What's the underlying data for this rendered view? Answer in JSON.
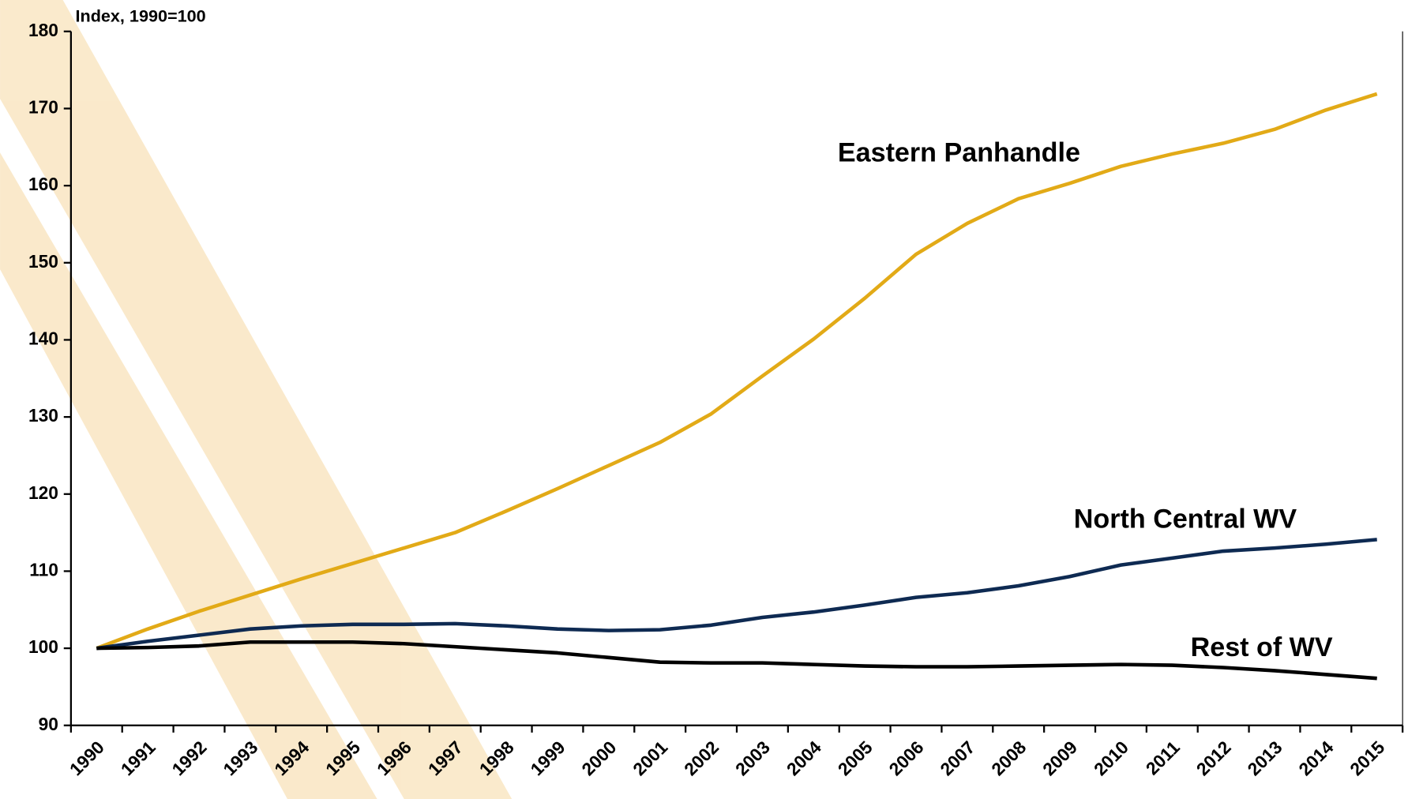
{
  "chart_data": {
    "type": "line",
    "y_label": "Index, 1990=100",
    "categories": [
      "1990",
      "1991",
      "1992",
      "1993",
      "1994",
      "1995",
      "1996",
      "1997",
      "1998",
      "1999",
      "2000",
      "2001",
      "2002",
      "2003",
      "2004",
      "2005",
      "2006",
      "2007",
      "2008",
      "2009",
      "2010",
      "2011",
      "2012",
      "2013",
      "2014",
      "2015"
    ],
    "series": [
      {
        "name": "Eastern Panhandle",
        "color": "#e2aa17",
        "values": [
          100,
          102.5,
          104.8,
          106.9,
          109,
          111,
          113,
          115,
          117.8,
          120.7,
          123.7,
          126.7,
          130.4,
          135.3,
          140.1,
          145.4,
          151.1,
          155.1,
          158.3,
          160.3,
          162.5,
          164.1,
          165.5,
          167.3,
          169.8,
          171.9
        ]
      },
      {
        "name": "North Central WV",
        "color": "#0e2a52",
        "values": [
          100,
          100.9,
          101.7,
          102.5,
          102.9,
          103.1,
          103.1,
          103.2,
          102.9,
          102.5,
          102.3,
          102.4,
          103.0,
          104.0,
          104.7,
          105.6,
          106.6,
          107.2,
          108.1,
          109.3,
          110.8,
          111.7,
          112.6,
          113.0,
          113.5,
          114.1
        ]
      },
      {
        "name": "Rest of WV",
        "color": "#000000",
        "values": [
          100,
          100.1,
          100.3,
          100.8,
          100.8,
          100.8,
          100.6,
          100.2,
          99.8,
          99.4,
          98.8,
          98.2,
          98.1,
          98.1,
          97.9,
          97.7,
          97.6,
          97.6,
          97.7,
          97.8,
          97.9,
          97.8,
          97.5,
          97.1,
          96.6,
          96.1
        ]
      }
    ],
    "ylim": [
      90,
      180
    ],
    "yticks": [
      90,
      100,
      110,
      120,
      130,
      140,
      150,
      160,
      170,
      180
    ],
    "grid": false
  }
}
